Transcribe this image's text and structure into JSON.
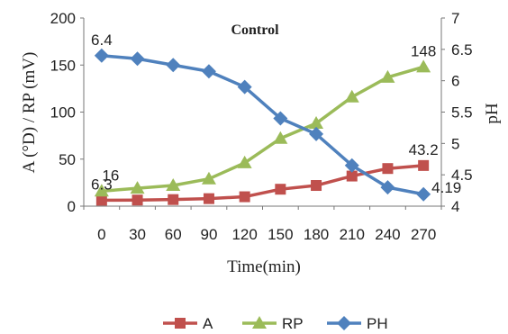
{
  "chart_data": {
    "type": "line",
    "title": "Control",
    "xlabel": "Time(min)",
    "ylabel_left": "A (°D) / RP (mV)",
    "ylabel_right": "pH",
    "x": [
      0,
      30,
      60,
      90,
      120,
      150,
      180,
      210,
      240,
      270
    ],
    "ylim_left": [
      0,
      200
    ],
    "yticks_left": [
      0,
      50,
      100,
      150,
      200
    ],
    "ylim_right": [
      4,
      7
    ],
    "yticks_right": [
      "4",
      "4.5",
      "5",
      "5.5",
      "6",
      "6.5",
      "7"
    ],
    "grid": false,
    "legend_position": "bottom",
    "series": [
      {
        "name": "A",
        "axis": "left",
        "color": "#c0504d",
        "marker": "square",
        "values": [
          6.3,
          6.5,
          7,
          8,
          10,
          18,
          22,
          32,
          40,
          43.2
        ]
      },
      {
        "name": "RP",
        "axis": "left",
        "color": "#9bbb59",
        "marker": "triangle",
        "values": [
          16,
          19,
          22,
          29,
          46,
          72,
          88,
          116,
          137,
          148
        ]
      },
      {
        "name": "PH",
        "axis": "right",
        "color": "#4f81bd",
        "marker": "diamond",
        "values": [
          6.4,
          6.35,
          6.25,
          6.15,
          5.9,
          5.4,
          5.15,
          4.65,
          4.3,
          4.19
        ]
      }
    ],
    "data_labels": [
      {
        "series": "PH",
        "index": 0,
        "text": "6.4",
        "pos": "above"
      },
      {
        "series": "RP",
        "index": 9,
        "text": "148",
        "pos": "above"
      },
      {
        "series": "RP",
        "index": 0,
        "text": "16",
        "pos": "above-right"
      },
      {
        "series": "A",
        "index": 0,
        "text": "6.3",
        "pos": "above"
      },
      {
        "series": "A",
        "index": 9,
        "text": "43.2",
        "pos": "above"
      },
      {
        "series": "PH",
        "index": 9,
        "text": "4.19",
        "pos": "right"
      }
    ]
  }
}
